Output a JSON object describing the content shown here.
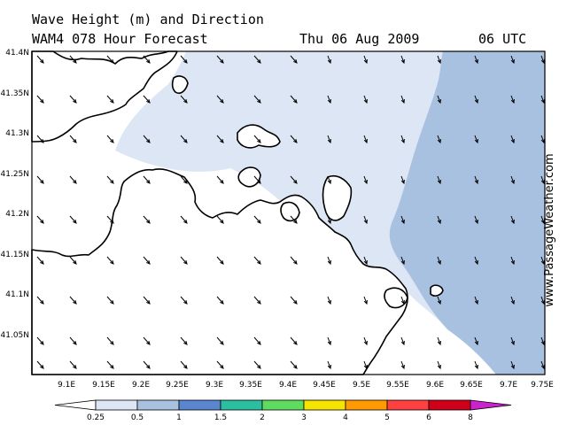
{
  "header": {
    "title_line1": "Wave Height (m) and Direction",
    "title_line2": "WAM4 078 Hour Forecast",
    "date": "Thu 06 Aug 2009",
    "time": "06 UTC"
  },
  "watermark": "www.PassageWeather.com",
  "axes": {
    "lat_labels": [
      "41.4N",
      "41.35N",
      "41.3N",
      "41.25N",
      "41.2N",
      "41.15N",
      "41.1N",
      "41.05N"
    ],
    "lon_labels": [
      "9.1E",
      "9.15E",
      "9.2E",
      "9.25E",
      "9.3E",
      "9.35E",
      "9.4E",
      "9.45E",
      "9.5E",
      "9.55E",
      "9.6E",
      "9.65E",
      "9.7E",
      "9.75E"
    ]
  },
  "legend": {
    "labels": [
      "0.25",
      "0.5",
      "1",
      "1.5",
      "2",
      "3",
      "4",
      "5",
      "6",
      "8"
    ],
    "colors": [
      "#ffffff",
      "#dce6f4",
      "#a9c1e0",
      "#5a86cf",
      "#2bbf9f",
      "#5fdc5f",
      "#f5e400",
      "#ff9a00",
      "#ff4040",
      "#d0001a",
      "#cc22cc"
    ]
  },
  "colors": {
    "band_0_25_0_5": "#dce6f4",
    "band_0_5_1": "#a9c1e0",
    "land": "#ffffff",
    "coast": "#000000"
  }
}
